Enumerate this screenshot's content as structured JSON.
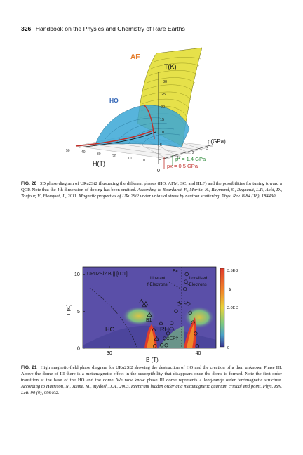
{
  "header": {
    "page_number": "326",
    "book_title": "Handbook on the Physics and Chemistry of Rare Earths"
  },
  "figure20": {
    "labels": {
      "af": "AF",
      "ho": "HO",
      "tk": "T(K)",
      "h": "H(T)",
      "p": "p(GPa)",
      "pstar": "p* = 1.4 GPa",
      "px": "px = 0.5 GPa",
      "zero": "0"
    },
    "t_ticks": [
      "30",
      "25",
      "20",
      "15",
      "10",
      "5"
    ],
    "h_ticks": [
      "50",
      "40",
      "30",
      "20",
      "10",
      "0"
    ],
    "p_ticks": [
      "0",
      "1",
      "2",
      "3"
    ],
    "caption": {
      "label": "FIG. 20",
      "text": "3D phase diagram of URu2Si2 illustrating the different phases (HO, AFM, SC, and HLF) and the possibilities for tuning toward a QCP. Note that the 4th dimension of doping has been omitted.",
      "reference": "According to Bourdarot, F., Martin, N., Raymond, S., Regnault, L.P., Aoki, D., Taufour, V., Flouquet, J., 2011. Magnetic properties of URu2Si2 under uniaxial stress by neutron scattering. Phys. Rev. B 84 (18), 184430."
    }
  },
  "figure21": {
    "labels": {
      "compound": "URu2Si2  B || [001]",
      "itinerant_line1": "Itinerant",
      "itinerant_line2": "f-Electrons",
      "localised_line1": "Localised",
      "localised_line2": "f-Electrons",
      "ho": "HO",
      "rho": "RHO",
      "qcep": "QCEP?",
      "bc": "Bc",
      "b1": "B1",
      "xlabel": "B (T)",
      "ylabel": "T (K)",
      "chi": "χ"
    },
    "colorbar_ticks": [
      "3.5E-2",
      "2.0E-2",
      "0"
    ],
    "chart_data": {
      "type": "scatter",
      "xlim": [
        27,
        42
      ],
      "ylim": [
        0,
        11
      ],
      "x_ticks": [
        30,
        40
      ],
      "y_ticks": [
        0,
        5,
        10
      ],
      "series": [
        {
          "name": "",
          "marker": "triangle",
          "points": [
            [
              33.6,
              6.3
            ],
            [
              33.9,
              5.8
            ],
            [
              34.1,
              6.0
            ],
            [
              34.5,
              4.5
            ],
            [
              35.0,
              2.5
            ],
            [
              35.3,
              1.3
            ],
            [
              35.8,
              3.4
            ]
          ]
        },
        {
          "name": "",
          "marker": "circle",
          "points": [
            [
              35.1,
              0.3
            ],
            [
              35.9,
              0.4
            ],
            [
              36.4,
              0.4
            ],
            [
              36.6,
              2.0
            ],
            [
              37.0,
              3.4
            ],
            [
              37.5,
              5.0
            ],
            [
              37.8,
              6.0
            ],
            [
              38.0,
              6.2
            ],
            [
              38.5,
              8.0
            ],
            [
              38.6,
              9.0
            ],
            [
              38.7,
              10.0
            ],
            [
              38.6,
              6.2
            ],
            [
              38.9,
              6.0
            ],
            [
              39.1,
              4.8
            ],
            [
              39.4,
              3.5
            ],
            [
              39.7,
              2.0
            ],
            [
              39.9,
              0.3
            ]
          ]
        }
      ]
    },
    "caption": {
      "label": "FIG. 21",
      "text": "High magnetic-field phase diagram for URu2Si2 showing the destruction of HO and the creation of a then unknown Phase III. Above the dome of III there is a metamagnetic effect in the susceptibility that disappears once the dome is formed. Note the first order transition at the base of the HO and the dome. We now know phase III dome represents a long-range order ferrimagnetic structure.",
      "reference": "According to Harrison, N., Jaime, M., Mydosh, J.A., 2003. Reentrant hidden order at a metamagnetic quantum critical end point. Phys. Rev. Lett. 90 (9), 096402."
    },
    "colors": {
      "background": "#5a4fa8",
      "high": "#e03b2a",
      "mid": "#e8d23a",
      "low": "#7fc97f",
      "cold": "#3a3590"
    }
  }
}
